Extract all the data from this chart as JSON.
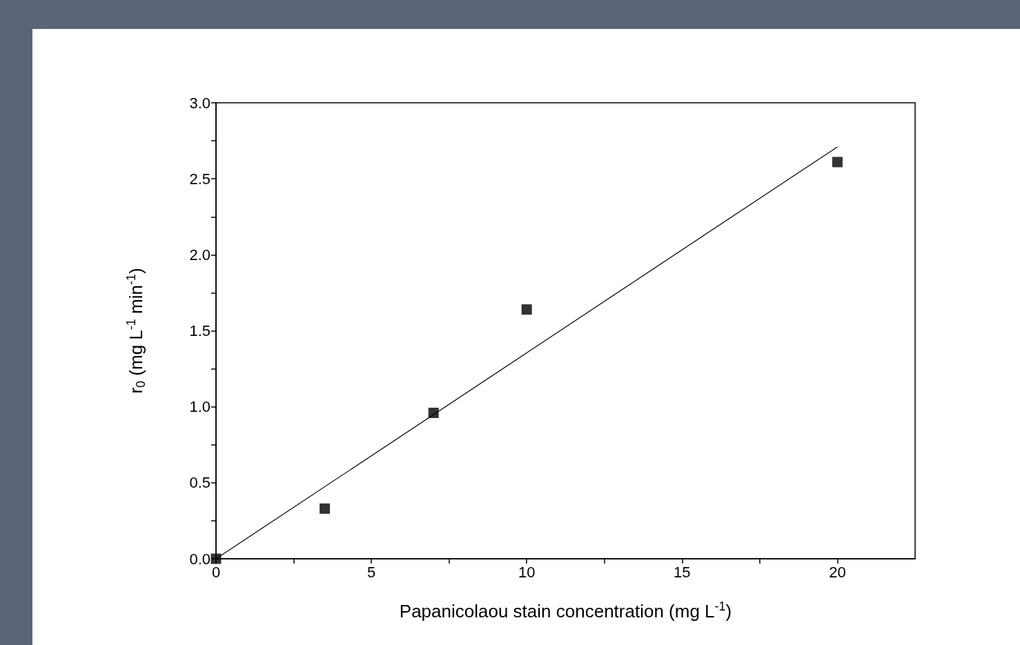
{
  "chart_data": {
    "type": "scatter",
    "xlabel": "Papanicolaou stain concentration (mg L$^{-1}$)",
    "ylabel": "r$_{0}$ (mg L$^{-1}$ min$^{-1}$)",
    "xlim": [
      0,
      22.5
    ],
    "ylim": [
      0,
      3.0
    ],
    "xticks": [
      0,
      {
        "value": 2.5,
        "label": null
      },
      5,
      {
        "value": 7.5,
        "label": null
      },
      10,
      {
        "value": 12.5,
        "label": null
      },
      15,
      {
        "value": 17.5,
        "label": null
      },
      20
    ],
    "yticks": [
      {
        "value": 0,
        "label": "0.0"
      },
      {
        "value": 0.25,
        "label": null
      },
      0.5,
      {
        "value": 0.75,
        "label": null
      },
      {
        "value": 1,
        "label": "1.0"
      },
      {
        "value": 1.25,
        "label": null
      },
      1.5,
      {
        "value": 1.75,
        "label": null
      },
      {
        "value": 2,
        "label": "2.0"
      },
      {
        "value": 2.25,
        "label": null
      },
      2.5,
      {
        "value": 2.75,
        "label": null
      },
      {
        "value": 3,
        "label": "3.0"
      }
    ],
    "grid": false,
    "series": [
      {
        "marker": "square",
        "color": "#000000",
        "x": [
          0,
          3.5,
          7,
          10,
          20
        ],
        "values": [
          0,
          0.33,
          0.96,
          1.64,
          2.61
        ]
      },
      {
        "type": "line",
        "marker": "none",
        "line_style": "solid",
        "color": "#000000",
        "x": [
          0,
          20
        ],
        "values": [
          0,
          2.71
        ]
      }
    ]
  }
}
